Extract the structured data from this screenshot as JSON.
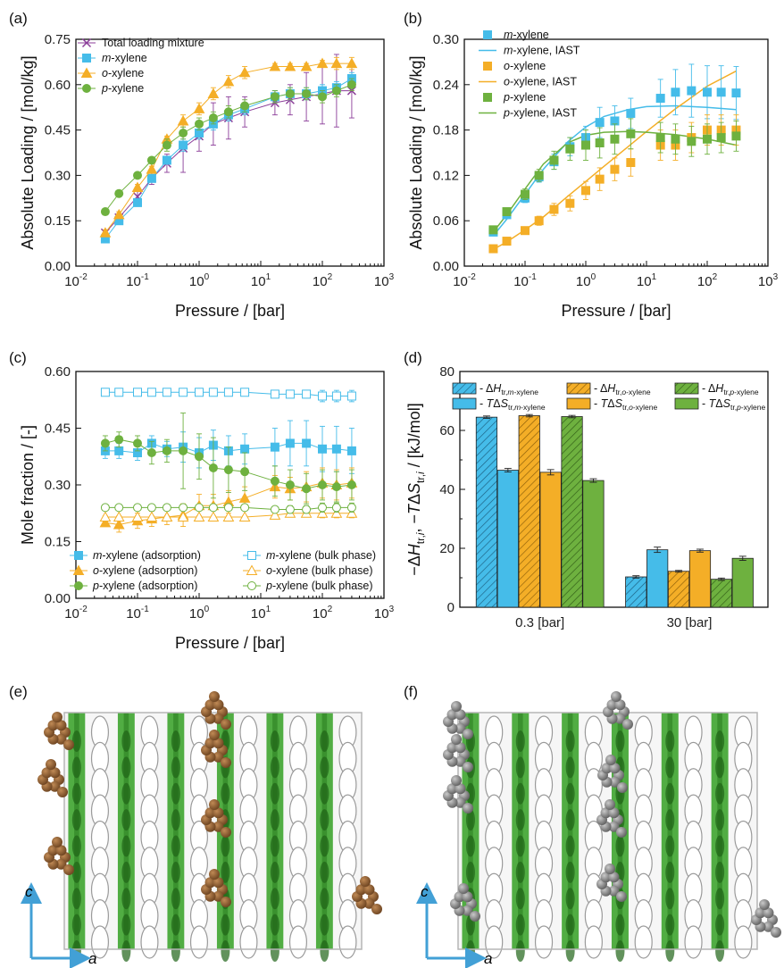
{
  "colors": {
    "mx": "#45bce9",
    "ox": "#f4ae27",
    "px": "#6eb13f",
    "total": "#8b3d99",
    "axis": "#111111",
    "framework_green": "#3fa530",
    "atom_brown": "#93602f",
    "atom_gray": "#8a8a8a",
    "arrow": "#42a0d6"
  },
  "panels": {
    "a": {
      "label": "(a)",
      "xlabel": "Pressure / [bar]",
      "ylabel": "Absolute Loading / [mol/kg]"
    },
    "b": {
      "label": "(b)",
      "xlabel": "Pressure / [bar]",
      "ylabel": "Absolute Loading / [mol/kg]"
    },
    "c": {
      "label": "(c)",
      "xlabel": "Pressure / [bar]",
      "ylabel": "Mole fraction / [-]"
    },
    "d": {
      "label": "(d)",
      "ylabel": "−ΔH_tr,i, −TΔS_tr,i / [kJ/mol]"
    },
    "e": {
      "label": "(e)",
      "axis_c": "c",
      "axis_a": "a"
    },
    "f": {
      "label": "(f)",
      "axis_c": "c",
      "axis_a": "a"
    }
  },
  "chart_data": [
    {
      "panel": "a",
      "type": "line",
      "xscale": "log",
      "xlim": [
        0.01,
        1000
      ],
      "ylim": [
        0,
        0.75
      ],
      "xticks": [
        "10^-2",
        "10^-1",
        "10^0",
        "10^1",
        "10^2",
        "10^3"
      ],
      "yticks": [
        "0.00",
        "0.15",
        "0.30",
        "0.45",
        "0.60",
        "0.75"
      ],
      "xlabel": "Pressure / [bar]",
      "ylabel": "Absolute Loading / [mol/kg]",
      "legend_position": "top-left",
      "x": [
        0.03,
        0.05,
        0.1,
        0.17,
        0.3,
        0.55,
        1,
        1.7,
        3,
        5.5,
        17,
        30,
        55,
        100,
        170,
        300
      ],
      "series": [
        {
          "name": "Total loading mixture",
          "marker": "x",
          "color": "total",
          "values": [
            0.11,
            0.16,
            0.23,
            0.29,
            0.34,
            0.39,
            0.43,
            0.47,
            0.49,
            0.51,
            0.54,
            0.55,
            0.56,
            0.57,
            0.58,
            0.58
          ],
          "err": [
            0.01,
            0.01,
            0.02,
            0.02,
            0.03,
            0.08,
            0.05,
            0.07,
            0.07,
            0.05,
            0.04,
            0.05,
            0.08,
            0.1,
            0.12,
            0.09
          ]
        },
        {
          "name": "m-xylene",
          "marker": "square",
          "color": "mx",
          "values": [
            0.09,
            0.15,
            0.21,
            0.29,
            0.35,
            0.4,
            0.44,
            0.47,
            0.5,
            0.52,
            0.56,
            0.57,
            0.57,
            0.58,
            0.59,
            0.62
          ],
          "err": [
            0.01,
            0.01,
            0.01,
            0.01,
            0.01,
            0.02,
            0.02,
            0.02,
            0.02,
            0.02,
            0.02,
            0.02,
            0.02,
            0.02,
            0.02,
            0.02
          ]
        },
        {
          "name": "o-xylene",
          "marker": "triangle",
          "color": "ox",
          "values": [
            0.11,
            0.17,
            0.26,
            0.32,
            0.42,
            0.48,
            0.52,
            0.57,
            0.61,
            0.64,
            0.66,
            0.66,
            0.66,
            0.67,
            0.67,
            0.67
          ],
          "err": [
            0.01,
            0.01,
            0.01,
            0.01,
            0.01,
            0.02,
            0.02,
            0.02,
            0.02,
            0.02,
            0.01,
            0.01,
            0.01,
            0.01,
            0.02,
            0.02
          ]
        },
        {
          "name": "p-xylene",
          "marker": "circle",
          "color": "px",
          "values": [
            0.18,
            0.24,
            0.3,
            0.35,
            0.4,
            0.44,
            0.47,
            0.49,
            0.51,
            0.53,
            0.56,
            0.57,
            0.57,
            0.56,
            0.58,
            0.6
          ],
          "err": [
            0.01,
            0.01,
            0.01,
            0.01,
            0.02,
            0.02,
            0.02,
            0.02,
            0.02,
            0.02,
            0.02,
            0.02,
            0.02,
            0.02,
            0.02,
            0.02
          ]
        }
      ]
    },
    {
      "panel": "b",
      "type": "scatter",
      "xscale": "log",
      "xlim": [
        0.01,
        1000
      ],
      "ylim": [
        0,
        0.3
      ],
      "xticks": [
        "10^-2",
        "10^-1",
        "10^0",
        "10^1",
        "10^2",
        "10^3"
      ],
      "yticks": [
        "0.00",
        "0.06",
        "0.12",
        "0.18",
        "0.24",
        "0.30"
      ],
      "xlabel": "Pressure / [bar]",
      "ylabel": "Absolute Loading / [mol/kg]",
      "legend_position": "top-left",
      "x": [
        0.03,
        0.05,
        0.1,
        0.17,
        0.3,
        0.55,
        1,
        1.7,
        3,
        5.5,
        17,
        30,
        55,
        100,
        170,
        300
      ],
      "series": [
        {
          "name": "m-xylene",
          "marker": "square",
          "color": "mx",
          "values": [
            0.045,
            0.068,
            0.09,
            0.118,
            0.138,
            0.158,
            0.17,
            0.19,
            0.192,
            0.202,
            0.222,
            0.23,
            0.232,
            0.23,
            0.23,
            0.229
          ],
          "err": [
            0.004,
            0.005,
            0.006,
            0.007,
            0.01,
            0.012,
            0.015,
            0.02,
            0.02,
            0.02,
            0.025,
            0.03,
            0.035,
            0.035,
            0.035,
            0.035
          ]
        },
        {
          "name": "o-xylene",
          "marker": "square",
          "color": "ox",
          "values": [
            0.023,
            0.033,
            0.047,
            0.06,
            0.075,
            0.083,
            0.1,
            0.115,
            0.128,
            0.137,
            0.16,
            0.16,
            0.17,
            0.18,
            0.18,
            0.18
          ],
          "err": [
            0.003,
            0.004,
            0.005,
            0.006,
            0.008,
            0.01,
            0.012,
            0.015,
            0.015,
            0.018,
            0.02,
            0.02,
            0.02,
            0.02,
            0.02,
            0.02
          ]
        },
        {
          "name": "p-xylene",
          "marker": "square",
          "color": "px",
          "values": [
            0.048,
            0.072,
            0.095,
            0.12,
            0.14,
            0.155,
            0.16,
            0.163,
            0.168,
            0.175,
            0.17,
            0.168,
            0.165,
            0.168,
            0.17,
            0.172
          ],
          "err": [
            0.004,
            0.005,
            0.007,
            0.008,
            0.012,
            0.015,
            0.02,
            0.02,
            0.02,
            0.02,
            0.02,
            0.02,
            0.02,
            0.02,
            0.02,
            0.02
          ]
        }
      ],
      "lines": [
        {
          "name": "m-xylene, IAST",
          "color": "mx",
          "x": [
            0.03,
            0.05,
            0.1,
            0.2,
            0.5,
            1,
            2,
            5,
            10,
            30,
            100,
            300
          ],
          "values": [
            0.04,
            0.062,
            0.095,
            0.128,
            0.164,
            0.184,
            0.198,
            0.207,
            0.211,
            0.212,
            0.21,
            0.207
          ]
        },
        {
          "name": "o-xylene, IAST",
          "color": "ox",
          "x": [
            0.03,
            0.05,
            0.1,
            0.2,
            0.5,
            1,
            2,
            5,
            10,
            30,
            100,
            300
          ],
          "values": [
            0.022,
            0.032,
            0.048,
            0.065,
            0.092,
            0.112,
            0.132,
            0.158,
            0.178,
            0.208,
            0.238,
            0.258
          ]
        },
        {
          "name": "p-xylene, IAST",
          "color": "px",
          "x": [
            0.03,
            0.05,
            0.1,
            0.2,
            0.5,
            1,
            2,
            5,
            10,
            30,
            100,
            300
          ],
          "values": [
            0.045,
            0.068,
            0.102,
            0.135,
            0.163,
            0.173,
            0.177,
            0.178,
            0.177,
            0.174,
            0.168,
            0.16
          ]
        }
      ]
    },
    {
      "panel": "c",
      "type": "line",
      "xscale": "log",
      "xlim": [
        0.01,
        1000
      ],
      "ylim": [
        0,
        0.6
      ],
      "xticks": [
        "10^-2",
        "10^-1",
        "10^0",
        "10^1",
        "10^2",
        "10^3"
      ],
      "yticks": [
        "0.00",
        "0.15",
        "0.30",
        "0.45",
        "0.60"
      ],
      "xlabel": "Pressure / [bar]",
      "ylabel": "Mole fraction / [-]",
      "legend_position": "bottom",
      "x": [
        0.03,
        0.05,
        0.1,
        0.17,
        0.3,
        0.55,
        1,
        1.7,
        3,
        5.5,
        17,
        30,
        55,
        100,
        170,
        300
      ],
      "series": [
        {
          "name": "m-xylene (adsorption)",
          "marker": "square",
          "filled": true,
          "color": "mx",
          "values": [
            0.39,
            0.39,
            0.385,
            0.41,
            0.395,
            0.4,
            0.385,
            0.405,
            0.39,
            0.395,
            0.4,
            0.41,
            0.41,
            0.395,
            0.395,
            0.39
          ],
          "err": [
            0.02,
            0.02,
            0.02,
            0.02,
            0.02,
            0.04,
            0.04,
            0.04,
            0.04,
            0.04,
            0.05,
            0.06,
            0.06,
            0.06,
            0.06,
            0.06
          ]
        },
        {
          "name": "o-xylene (adsorption)",
          "marker": "triangle",
          "filled": true,
          "color": "ox",
          "values": [
            0.2,
            0.195,
            0.205,
            0.21,
            0.215,
            0.22,
            0.245,
            0.245,
            0.255,
            0.265,
            0.295,
            0.29,
            0.295,
            0.305,
            0.3,
            0.305
          ],
          "err": [
            0.01,
            0.02,
            0.02,
            0.02,
            0.02,
            0.03,
            0.03,
            0.03,
            0.03,
            0.03,
            0.03,
            0.03,
            0.04,
            0.04,
            0.04,
            0.04
          ]
        },
        {
          "name": "p-xylene (adsorption)",
          "marker": "circle",
          "filled": true,
          "color": "px",
          "values": [
            0.41,
            0.42,
            0.41,
            0.385,
            0.39,
            0.39,
            0.375,
            0.345,
            0.34,
            0.335,
            0.31,
            0.3,
            0.29,
            0.3,
            0.295,
            0.3
          ],
          "err": [
            0.02,
            0.02,
            0.02,
            0.03,
            0.03,
            0.1,
            0.06,
            0.08,
            0.06,
            0.05,
            0.04,
            0.04,
            0.04,
            0.04,
            0.04,
            0.04
          ]
        },
        {
          "name": "m-xylene (bulk phase)",
          "marker": "square",
          "filled": false,
          "color": "mx",
          "values": [
            0.545,
            0.545,
            0.545,
            0.545,
            0.545,
            0.545,
            0.545,
            0.545,
            0.545,
            0.545,
            0.54,
            0.54,
            0.54,
            0.535,
            0.535,
            0.535
          ],
          "err": [
            0.003,
            0.003,
            0.003,
            0.003,
            0.003,
            0.003,
            0.003,
            0.003,
            0.003,
            0.003,
            0.008,
            0.01,
            0.01,
            0.015,
            0.015,
            0.015
          ]
        },
        {
          "name": "o-xylene (bulk phase)",
          "marker": "triangle",
          "filled": false,
          "color": "ox",
          "values": [
            0.215,
            0.215,
            0.215,
            0.215,
            0.215,
            0.215,
            0.215,
            0.215,
            0.215,
            0.215,
            0.22,
            0.225,
            0.225,
            0.225,
            0.225,
            0.225
          ],
          "err": [
            0.003,
            0.003,
            0.003,
            0.003,
            0.003,
            0.003,
            0.003,
            0.003,
            0.003,
            0.003,
            0.008,
            0.01,
            0.01,
            0.012,
            0.012,
            0.012
          ]
        },
        {
          "name": "p-xylene (bulk phase)",
          "marker": "circle",
          "filled": false,
          "color": "px",
          "values": [
            0.24,
            0.24,
            0.24,
            0.24,
            0.24,
            0.24,
            0.24,
            0.24,
            0.24,
            0.24,
            0.235,
            0.235,
            0.235,
            0.24,
            0.24,
            0.24
          ],
          "err": [
            0.003,
            0.003,
            0.003,
            0.003,
            0.003,
            0.003,
            0.003,
            0.003,
            0.003,
            0.003,
            0.008,
            0.01,
            0.01,
            0.012,
            0.012,
            0.012
          ]
        }
      ]
    },
    {
      "panel": "d",
      "type": "bar",
      "categories": [
        "0.3 [bar]",
        "30 [bar]"
      ],
      "ylim": [
        0,
        80
      ],
      "yticks": [
        "0",
        "20",
        "40",
        "60",
        "80"
      ],
      "ylabel": "−ΔH_tr,i, −TΔS_tr,i / [kJ/mol]",
      "legend_position": "top",
      "series": [
        {
          "name": "- ΔH_tr,m-xylene",
          "color": "mx",
          "hatched": true,
          "values": [
            64.5,
            10.3
          ],
          "err": [
            0.4,
            0.4
          ]
        },
        {
          "name": "- TΔS_tr,m-xylene",
          "color": "mx",
          "hatched": false,
          "values": [
            46.5,
            19.5
          ],
          "err": [
            0.6,
            0.9
          ]
        },
        {
          "name": "- ΔH_tr,o-xylene",
          "color": "ox",
          "hatched": true,
          "values": [
            65.0,
            12.2
          ],
          "err": [
            0.4,
            0.3
          ]
        },
        {
          "name": "- TΔS_tr,o-xylene",
          "color": "ox",
          "hatched": false,
          "values": [
            45.8,
            19.2
          ],
          "err": [
            0.9,
            0.5
          ]
        },
        {
          "name": "- ΔH_tr,p-xylene",
          "color": "px",
          "hatched": true,
          "values": [
            64.7,
            9.5
          ],
          "err": [
            0.4,
            0.4
          ]
        },
        {
          "name": "- TΔS_tr,p-xylene",
          "color": "px",
          "hatched": false,
          "values": [
            43.0,
            16.6
          ],
          "err": [
            0.6,
            0.7
          ]
        }
      ]
    }
  ]
}
